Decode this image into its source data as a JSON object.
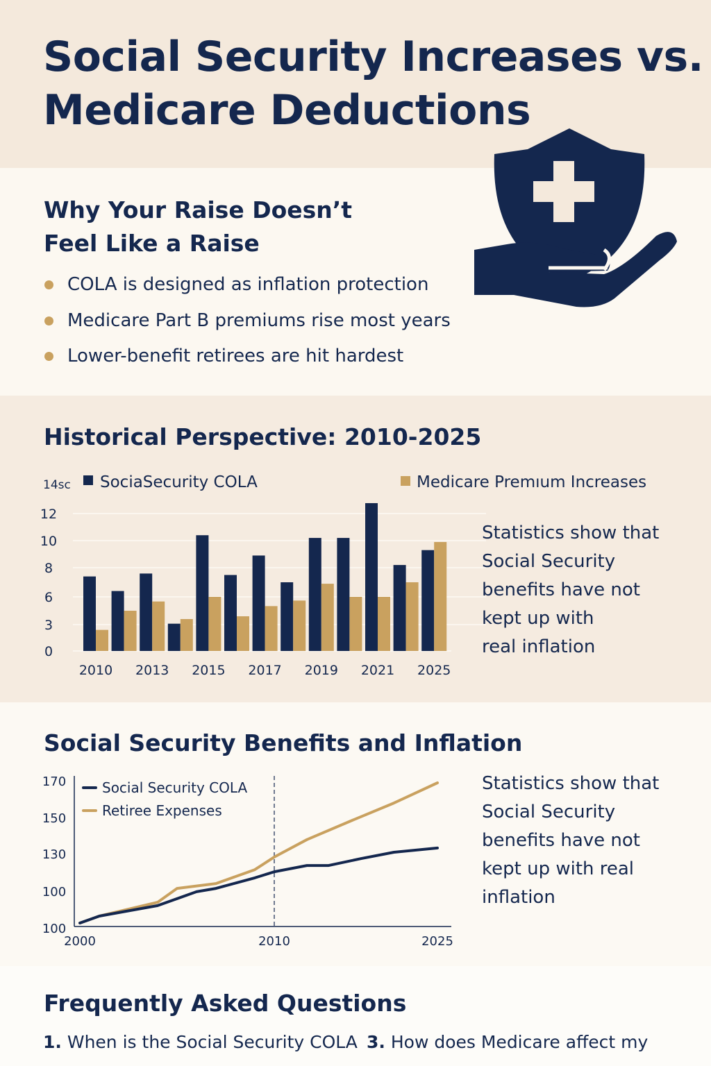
{
  "header": {
    "title_line1": "Social Security Increases vs.",
    "title_line2": "Medicare Deductions"
  },
  "section1": {
    "heading_line1": "Why Your Raise Doesn’t",
    "heading_line2": "Feel Like a Raise",
    "bullets": [
      "COLA is designed as inflation protection",
      "Medicare Part B premiums rise most years",
      "Lower-benefit retirees are hit hardest"
    ],
    "icon": "shield-medical-cross-on-hand-icon"
  },
  "section2": {
    "heading": "Historical Perspective: 2010-2025",
    "side_text": [
      "Statistics show that",
      "Social Security",
      "benefits have not",
      "kept up with",
      "real inflation"
    ]
  },
  "section3": {
    "heading": "Social Security Benefits and Inflation",
    "side_text": [
      "Statistics show that",
      "Social Security",
      "benefits have not",
      "kept up with real",
      "inflation"
    ]
  },
  "faq": {
    "heading": "Frequently Asked Questions",
    "items": [
      {
        "num": "1.",
        "text": "When is the Social Security COLA"
      },
      {
        "num": "3.",
        "text": "How does Medicare affect my"
      }
    ]
  },
  "colors": {
    "navy": "#14274e",
    "gold": "#c9a15f"
  },
  "chart_data": [
    {
      "type": "bar",
      "title": "",
      "xlabel": "",
      "ylabel": "",
      "y_tick_labels": [
        "0",
        "3",
        "6",
        "8",
        "10",
        "12",
        "14sc"
      ],
      "categories": [
        "2010",
        "",
        "2013",
        "",
        "2015",
        "",
        "2017",
        "",
        "2019",
        "",
        "2021",
        "",
        "2025"
      ],
      "series": [
        {
          "name": "SociaSecurity COLA",
          "color": "#14274e",
          "values": [
            7.4,
            6.4,
            7.6,
            3.1,
            10.4,
            7.5,
            8.9,
            7.0,
            10.2,
            10.2,
            12.7,
            8.2,
            9.3
          ]
        },
        {
          "name": "Medicare Premıum Increases",
          "color": "#c9a15f",
          "values": [
            2.4,
            4.5,
            5.5,
            3.6,
            6.0,
            3.9,
            5.0,
            5.6,
            6.9,
            6.0,
            6.0,
            7.0,
            9.9
          ]
        }
      ],
      "grid": true,
      "legend": "top"
    },
    {
      "type": "line",
      "title": "",
      "xlabel": "",
      "ylabel": "",
      "y_tick_labels": [
        "100",
        "100",
        "130",
        "150",
        "170"
      ],
      "ylim": [
        100,
        170
      ],
      "x_tick_labels": [
        "2000",
        "2010",
        "2025"
      ],
      "vline_x": 2010,
      "series": [
        {
          "name": "Social Security COLA",
          "color": "#14274e",
          "x": [
            2000,
            2001,
            2004,
            2006,
            2007,
            2009,
            2010,
            2013,
            2015,
            2018,
            2021,
            2025
          ],
          "y": [
            102.3,
            105.6,
            110.6,
            117.2,
            118.8,
            123.8,
            126.7,
            129.7,
            129.7,
            133,
            136,
            138
          ]
        },
        {
          "name": "Retiree Expenses",
          "color": "#c9a15f",
          "x": [
            2000,
            2001,
            2004,
            2005,
            2007,
            2009,
            2010,
            2013,
            2017,
            2021,
            2025
          ],
          "y": [
            102.3,
            105.6,
            112.2,
            118.8,
            121.1,
            127.7,
            133.7,
            142,
            150.8,
            159.4,
            169
          ]
        }
      ],
      "legend": "top-left"
    }
  ]
}
